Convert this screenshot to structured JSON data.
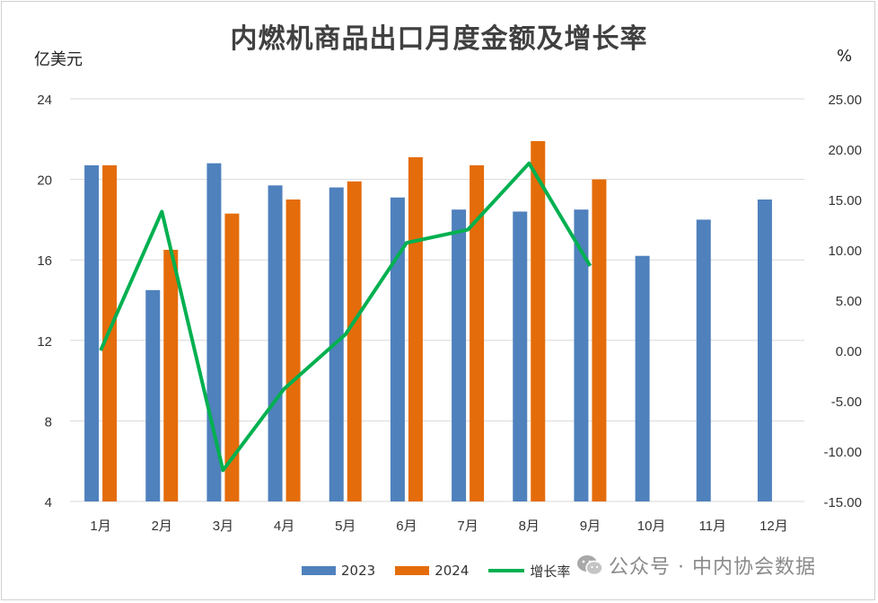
{
  "chart_data": {
    "type": "bar+line",
    "title": "内燃机商品出口月度金额及增长率",
    "ylabel_left": "亿美元",
    "ylabel_right": "%",
    "categories": [
      "1月",
      "2月",
      "3月",
      "4月",
      "5月",
      "6月",
      "7月",
      "8月",
      "9月",
      "10月",
      "11月",
      "12月"
    ],
    "ylim_left": [
      4,
      24
    ],
    "yticks_left": [
      "4",
      "8",
      "12",
      "16",
      "20",
      "24"
    ],
    "ylim_right": [
      -15,
      25
    ],
    "yticks_right": [
      "-15.00",
      "-10.00",
      "-5.00",
      "0.00",
      "5.00",
      "10.00",
      "15.00",
      "20.00",
      "25.00"
    ],
    "grid": true,
    "series": [
      {
        "name": "2023",
        "type": "bar",
        "axis": "left",
        "color": "#4f81bd",
        "values": [
          20.7,
          14.5,
          20.8,
          19.7,
          19.6,
          19.1,
          18.5,
          18.4,
          18.5,
          16.2,
          18.0,
          19.0
        ]
      },
      {
        "name": "2024",
        "type": "bar",
        "axis": "left",
        "color": "#e46c0a",
        "values": [
          20.7,
          16.5,
          18.3,
          19.0,
          19.9,
          21.1,
          20.7,
          21.9,
          20.0,
          null,
          null,
          null
        ]
      },
      {
        "name": "增长率",
        "type": "line",
        "axis": "right",
        "color": "#00b050",
        "values": [
          0.0,
          13.8,
          -11.9,
          -3.8,
          1.6,
          10.7,
          12.0,
          18.6,
          8.4,
          null,
          null,
          null
        ]
      }
    ]
  },
  "legend": {
    "s1": "2023",
    "s2": "2024",
    "s3": "增长率"
  },
  "watermark": {
    "text": "公众号 · 中内协会数据"
  },
  "colors": {
    "bar2023": "#4f81bd",
    "bar2024": "#e46c0a",
    "line": "#00b050",
    "grid": "#d9d9d9"
  }
}
